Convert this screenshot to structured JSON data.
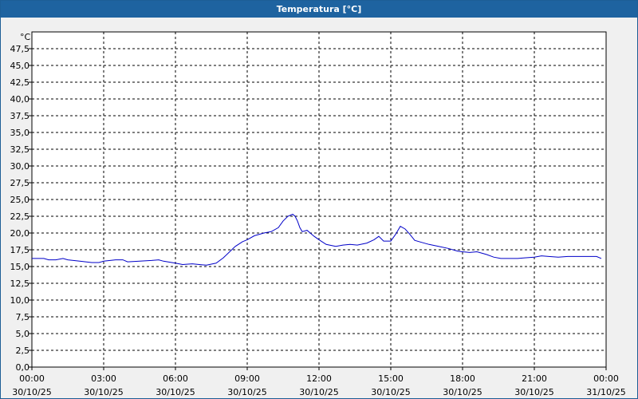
{
  "chart_data": {
    "type": "line",
    "title": "Temperatura [°C]",
    "ylabel": "°C",
    "xlabel": "",
    "ylim": [
      0,
      50
    ],
    "yticks": [
      "0,0",
      "2,5",
      "5,0",
      "7,5",
      "10,0",
      "12,5",
      "15,0",
      "17,5",
      "20,0",
      "22,5",
      "25,0",
      "27,5",
      "30,0",
      "32,5",
      "35,0",
      "37,5",
      "40,0",
      "42,5",
      "45,0",
      "47,5"
    ],
    "xlim": [
      0,
      24
    ],
    "xticks": [
      {
        "time": "00:00",
        "date": "30/10/25"
      },
      {
        "time": "03:00",
        "date": "30/10/25"
      },
      {
        "time": "06:00",
        "date": "30/10/25"
      },
      {
        "time": "09:00",
        "date": "30/10/25"
      },
      {
        "time": "12:00",
        "date": "30/10/25"
      },
      {
        "time": "15:00",
        "date": "30/10/25"
      },
      {
        "time": "18:00",
        "date": "30/10/25"
      },
      {
        "time": "21:00",
        "date": "30/10/25"
      },
      {
        "time": "00:00",
        "date": "31/10/25"
      }
    ],
    "grid": true,
    "series": [
      {
        "color": "#0000c8",
        "x": [
          0.0,
          0.5,
          0.7,
          1.0,
          1.3,
          1.5,
          2.0,
          2.5,
          2.8,
          3.0,
          3.5,
          3.8,
          4.0,
          4.5,
          5.0,
          5.3,
          5.5,
          6.0,
          6.3,
          6.7,
          7.0,
          7.3,
          7.7,
          8.0,
          8.5,
          8.8,
          9.0,
          9.3,
          9.7,
          10.0,
          10.3,
          10.5,
          10.7,
          10.9,
          11.0,
          11.1,
          11.2,
          11.3,
          11.5,
          11.8,
          12.0,
          12.3,
          12.7,
          13.0,
          13.3,
          13.6,
          14.0,
          14.3,
          14.5,
          14.7,
          15.0,
          15.2,
          15.4,
          15.6,
          15.8,
          16.0,
          16.3,
          16.6,
          17.0,
          17.4,
          17.8,
          18.0,
          18.3,
          18.6,
          19.0,
          19.3,
          19.6,
          20.0,
          20.3,
          20.6,
          21.0,
          21.3,
          21.6,
          22.0,
          22.4,
          22.8,
          23.2,
          23.6,
          23.8
        ],
        "values": [
          16.2,
          16.2,
          16.0,
          16.0,
          16.2,
          16.0,
          15.8,
          15.6,
          15.6,
          15.8,
          16.0,
          16.0,
          15.7,
          15.8,
          15.9,
          16.0,
          15.8,
          15.5,
          15.3,
          15.4,
          15.3,
          15.2,
          15.5,
          16.3,
          18.0,
          18.7,
          19.0,
          19.6,
          20.0,
          20.2,
          20.8,
          21.8,
          22.5,
          22.8,
          22.5,
          21.8,
          20.8,
          20.2,
          20.4,
          19.5,
          19.0,
          18.3,
          18.0,
          18.2,
          18.3,
          18.2,
          18.5,
          19.0,
          19.5,
          18.8,
          18.8,
          19.8,
          21.0,
          20.6,
          19.8,
          18.9,
          18.6,
          18.3,
          18.0,
          17.7,
          17.3,
          17.2,
          17.1,
          17.2,
          16.8,
          16.4,
          16.2,
          16.2,
          16.2,
          16.3,
          16.4,
          16.6,
          16.5,
          16.4,
          16.5,
          16.5,
          16.5,
          16.5,
          16.2
        ]
      }
    ]
  }
}
